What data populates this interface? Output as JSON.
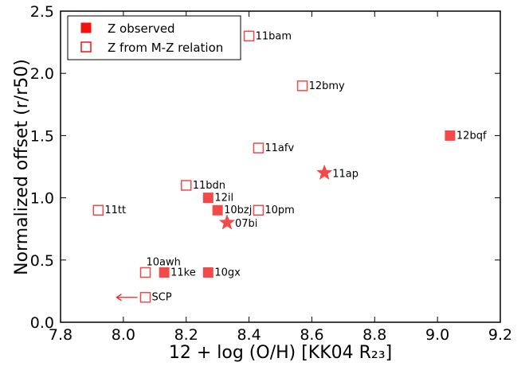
{
  "chart_data": {
    "type": "scatter",
    "xlabel": "12 + log (O/H) [KK04 R₂₃]",
    "ylabel": "Normalized offset (r/r50)",
    "xlim": [
      7.8,
      9.2
    ],
    "ylim": [
      0.0,
      2.5
    ],
    "x_ticks": [
      "7.8",
      "8.0",
      "8.2",
      "8.4",
      "8.6",
      "8.8",
      "9.0",
      "9.2"
    ],
    "y_ticks": [
      "0.0",
      "0.5",
      "1.0",
      "1.5",
      "2.0",
      "2.5"
    ],
    "grid": false,
    "legend_position": "top-left",
    "colors": {
      "marker": "#f24a4a",
      "arrow": "#e8231f"
    },
    "series": [
      {
        "name": "Z observed",
        "marker": "filled-square",
        "points": [
          {
            "label": "12bqf",
            "x": 9.04,
            "y": 1.5
          },
          {
            "label": "12il",
            "x": 8.27,
            "y": 1.0
          },
          {
            "label": "10bzj",
            "x": 8.3,
            "y": 0.9
          },
          {
            "label": "11ke",
            "x": 8.13,
            "y": 0.4
          },
          {
            "label": "10gx",
            "x": 8.27,
            "y": 0.4
          }
        ]
      },
      {
        "name": "Z from M-Z relation",
        "marker": "open-square",
        "points": [
          {
            "label": "11bam",
            "x": 8.4,
            "y": 2.3
          },
          {
            "label": "12bmy",
            "x": 8.57,
            "y": 1.9
          },
          {
            "label": "11afv",
            "x": 8.43,
            "y": 1.4
          },
          {
            "label": "11bdn",
            "x": 8.2,
            "y": 1.1
          },
          {
            "label": "11tt",
            "x": 7.92,
            "y": 0.9
          },
          {
            "label": "10pm",
            "x": 8.43,
            "y": 0.9
          },
          {
            "label": "10awh",
            "x": 8.07,
            "y": 0.4
          },
          {
            "label": "SCP",
            "x": 8.07,
            "y": 0.2,
            "upper_limit": true
          }
        ]
      },
      {
        "marker": "star",
        "points": [
          {
            "label": "11ap",
            "x": 8.64,
            "y": 1.2
          },
          {
            "label": "07bi",
            "x": 8.33,
            "y": 0.8
          }
        ]
      }
    ]
  }
}
